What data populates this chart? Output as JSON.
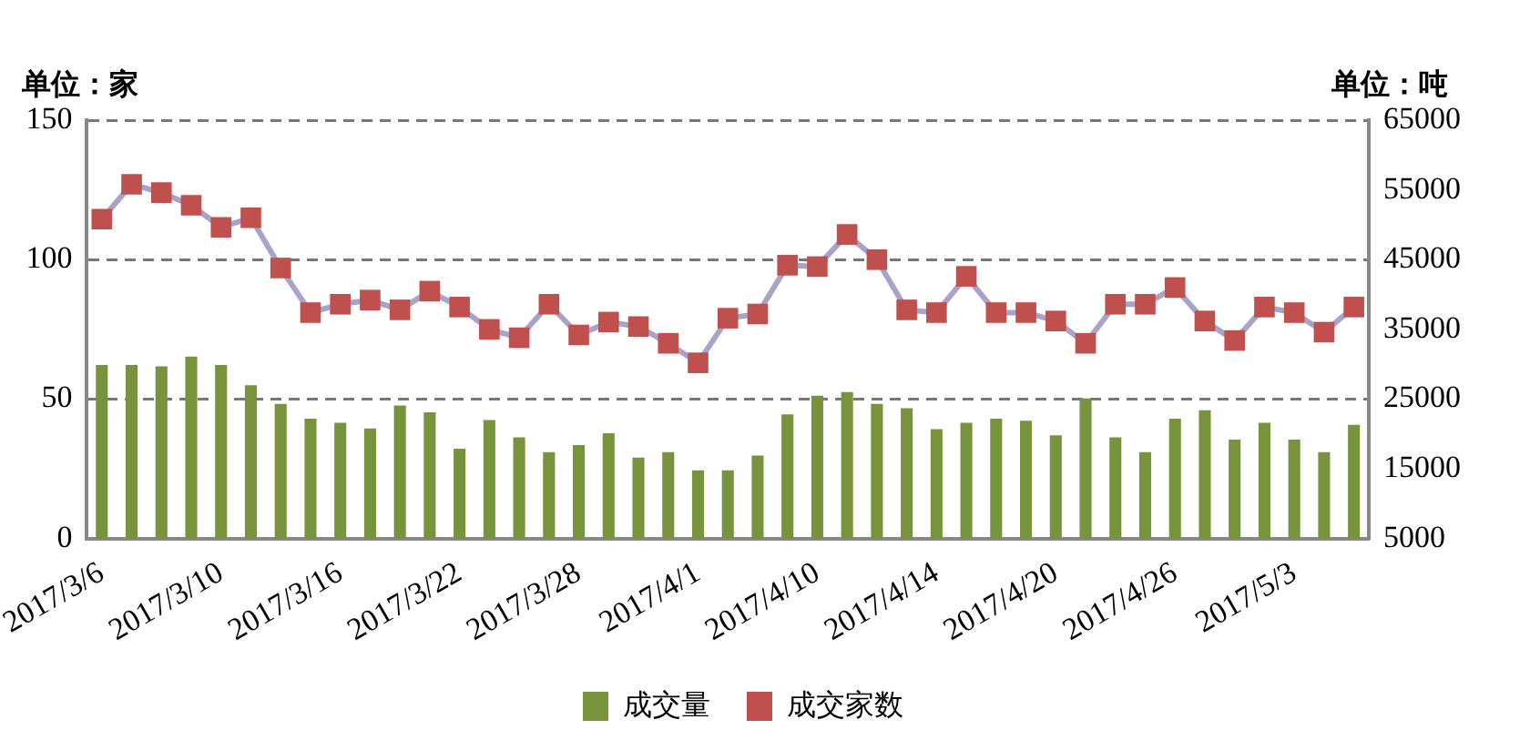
{
  "chart_data": {
    "type": "bar",
    "ylabel": "单位：家",
    "y2label": "单位：吨",
    "categories": [
      "2017/3/6",
      null,
      null,
      null,
      "2017/3/10",
      null,
      null,
      null,
      "2017/3/16",
      null,
      null,
      null,
      "2017/3/22",
      null,
      null,
      null,
      "2017/3/28",
      null,
      null,
      null,
      "2017/4/1",
      null,
      null,
      null,
      "2017/4/10",
      null,
      null,
      null,
      "2017/4/14",
      null,
      null,
      null,
      "2017/4/20",
      null,
      null,
      null,
      "2017/4/26",
      null,
      null,
      null,
      "2017/5/3",
      null,
      null
    ],
    "series": [
      {
        "name": "成交量",
        "axis": "y2",
        "color": "#77933c",
        "values": [
          29900,
          29900,
          29700,
          31100,
          29900,
          27000,
          24300,
          22200,
          21600,
          20800,
          24100,
          23100,
          17900,
          22000,
          19500,
          17400,
          18400,
          20100,
          16600,
          17400,
          14800,
          14800,
          16900,
          22800,
          25500,
          26000,
          24300,
          23700,
          20700,
          21600,
          22200,
          21900,
          19800,
          25100,
          19500,
          17400,
          22200,
          23400,
          19200,
          21600,
          19200,
          17400,
          21300
        ]
      },
      {
        "name": "成交家数",
        "type": "line",
        "color": "#c0504d",
        "marker": "square",
        "values": [
          114.5,
          127,
          124,
          119.5,
          111.6,
          115,
          97,
          81,
          84,
          85.5,
          82,
          88.7,
          83,
          75,
          72,
          84,
          73,
          77.6,
          76,
          70,
          63,
          79,
          80.5,
          98,
          97.5,
          109,
          100,
          82,
          81,
          94,
          81,
          81,
          78,
          70,
          84,
          84,
          90,
          78,
          71,
          83,
          81,
          74,
          83
        ]
      }
    ],
    "ylim": [
      0,
      150
    ],
    "yticks": [
      0,
      50,
      100,
      150
    ],
    "y2lim": [
      5000,
      65000
    ],
    "y2ticks": [
      5000,
      15000,
      25000,
      35000,
      45000,
      55000,
      65000
    ],
    "grid": "y",
    "legend": "bottom"
  }
}
